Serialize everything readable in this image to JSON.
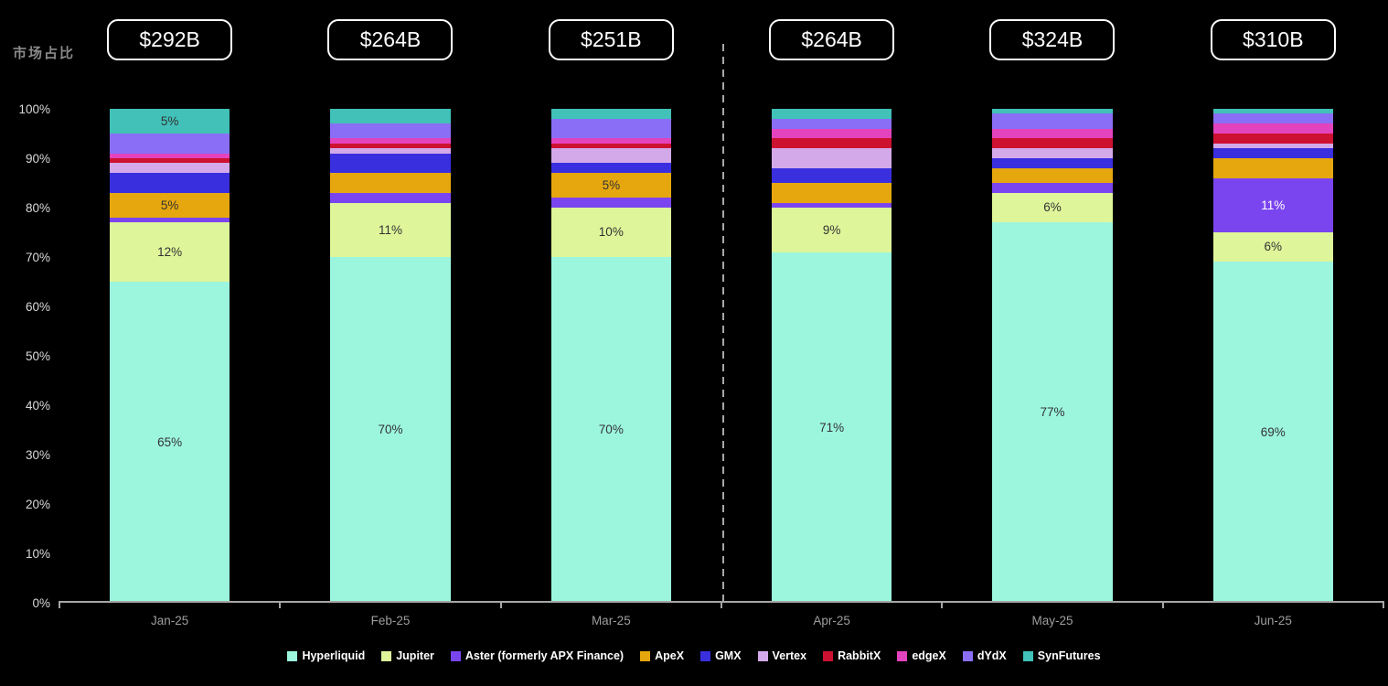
{
  "title": "市场占比",
  "chart_data": {
    "type": "bar",
    "stacked": true,
    "percent_stacked": true,
    "title": "市场占比",
    "categories": [
      "Jan-25",
      "Feb-25",
      "Mar-25",
      "Apr-25",
      "May-25",
      "Jun-25"
    ],
    "totals": [
      "$292B",
      "$264B",
      "$251B",
      "$264B",
      "$324B",
      "$310B"
    ],
    "xlabel": "",
    "ylabel": "市场占比",
    "ylim": [
      0,
      100
    ],
    "y_tick_step": 10,
    "y_tick_suffix": "%",
    "grid": false,
    "legend_position": "bottom",
    "label_threshold": 5,
    "label_suffix": "%",
    "divider_after_category": "Mar-25",
    "series": [
      {
        "name": "Hyperliquid",
        "color": "#9CF6DE",
        "label_color": "#333333",
        "values": [
          65,
          70,
          70,
          71,
          77,
          69
        ]
      },
      {
        "name": "Jupiter",
        "color": "#DEF59A",
        "label_color": "#333333",
        "values": [
          12,
          11,
          10,
          9,
          6,
          6
        ]
      },
      {
        "name": "Aster (formerly APX Finance)",
        "color": "#7A45EF",
        "label_color": "#FFFFFF",
        "values": [
          1,
          2,
          2,
          1,
          2,
          11
        ]
      },
      {
        "name": "ApeX",
        "color": "#E6A70E",
        "label_color": "#333333",
        "values": [
          5,
          4,
          5,
          4,
          3,
          4
        ]
      },
      {
        "name": "GMX",
        "color": "#3A2FDF",
        "label_color": "#FFFFFF",
        "values": [
          4,
          4,
          2,
          3,
          2,
          2
        ]
      },
      {
        "name": "Vertex",
        "color": "#D4A9EA",
        "label_color": "#333333",
        "values": [
          2,
          1,
          3,
          4,
          2,
          1
        ]
      },
      {
        "name": "RabbitX",
        "color": "#CD1130",
        "label_color": "#FFFFFF",
        "values": [
          1,
          1,
          1,
          2,
          2,
          2
        ]
      },
      {
        "name": "edgeX",
        "color": "#E343BC",
        "label_color": "#333333",
        "values": [
          1,
          1,
          1,
          2,
          2,
          2
        ]
      },
      {
        "name": "dYdX",
        "color": "#8A6EF5",
        "label_color": "#FFFFFF",
        "values": [
          4,
          3,
          4,
          2,
          3,
          2
        ]
      },
      {
        "name": "SynFutures",
        "color": "#41C1B8",
        "label_color": "#333333",
        "values": [
          5,
          3,
          2,
          2,
          1,
          1
        ]
      }
    ]
  }
}
